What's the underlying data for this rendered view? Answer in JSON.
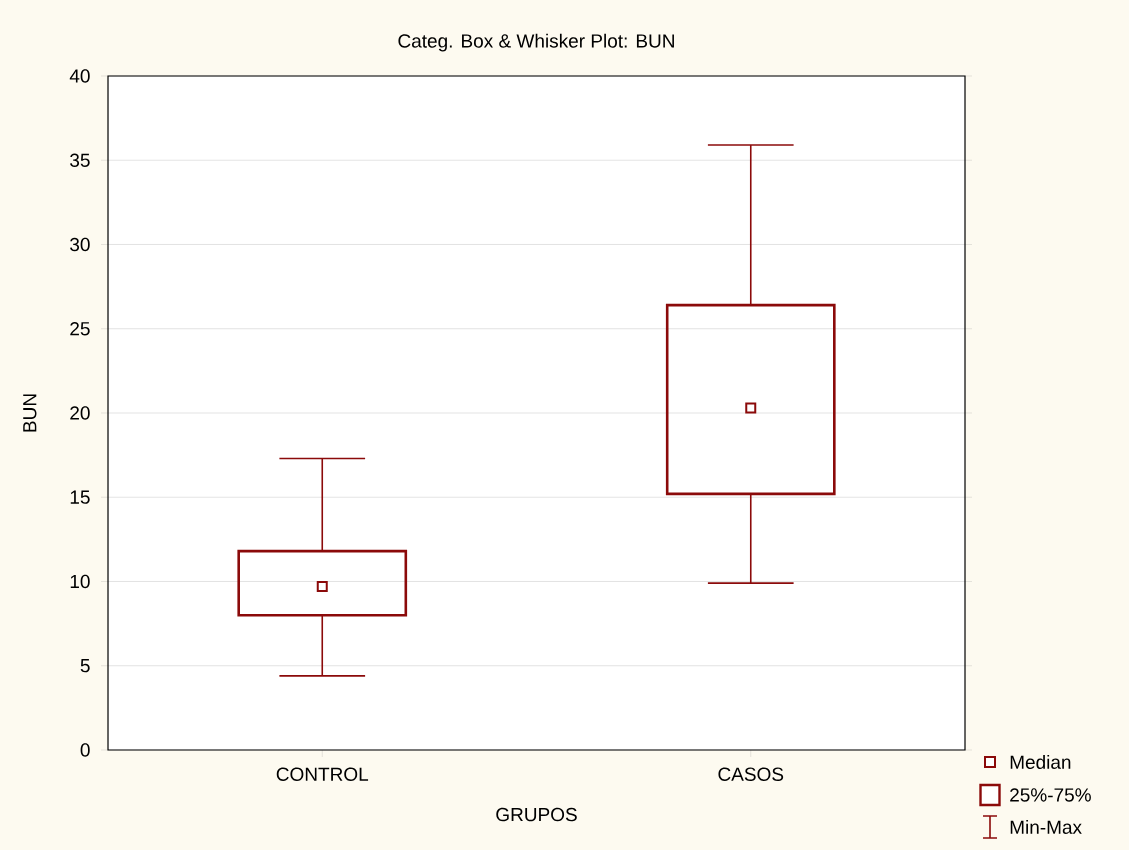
{
  "chart_data": {
    "type": "box",
    "title": "Categ. Box & Whisker Plot:      BUN",
    "xlabel": "GRUPOS",
    "ylabel": "BUN",
    "categories": [
      "CONTROL",
      "CASOS"
    ],
    "ylim": [
      0,
      40
    ],
    "yticks": [
      0,
      5,
      10,
      15,
      20,
      25,
      30,
      35,
      40
    ],
    "grid": "y",
    "marker": "square",
    "series": [
      {
        "color": "#8b0a0a",
        "boxes": [
          {
            "low": 4.4,
            "q1": 8.0,
            "median": 9.7,
            "q3": 11.8,
            "high": 17.3
          },
          {
            "low": 9.9,
            "q1": 15.2,
            "median": 20.3,
            "q3": 26.4,
            "high": 35.9
          }
        ]
      }
    ],
    "annotations": [
      "Median",
      "25%-75%",
      "Min-Max"
    ]
  }
}
